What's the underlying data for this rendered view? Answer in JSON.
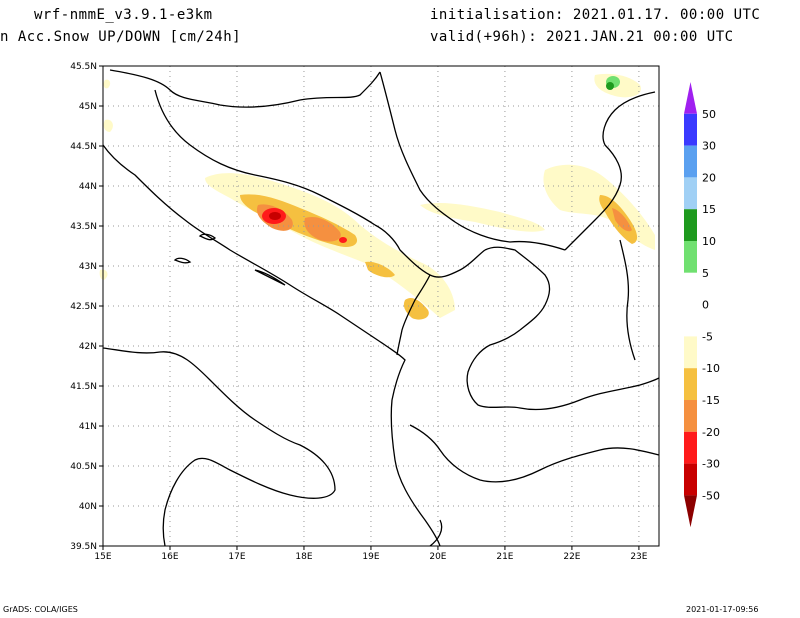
{
  "header": {
    "model": "wrf-nmmE_v3.9.1-e3km",
    "field": "n Acc.Snow UP/DOWN [cm/24h]",
    "init": "initialisation: 2021.01.17.  00:00 UTC",
    "valid": "valid(+96h): 2021.JAN.21 00:00 UTC"
  },
  "footer": {
    "credit": "GrADS: COLA/IGES",
    "timestamp": "2021-01-17-09:56"
  },
  "map": {
    "lat_labels": [
      "45.5N",
      "45N",
      "44.5N",
      "44N",
      "43.5N",
      "43N",
      "42.5N",
      "42N",
      "41.5N",
      "41N",
      "40.5N",
      "40N",
      "39.5N"
    ],
    "lon_labels": [
      "15E",
      "16E",
      "17E",
      "18E",
      "19E",
      "20E",
      "21E",
      "22E",
      "23E"
    ],
    "lon_range": [
      15,
      23.3
    ],
    "lat_range": [
      39.5,
      45.5
    ]
  },
  "colorbar": {
    "labels": [
      "50",
      "30",
      "20",
      "15",
      "10",
      "5",
      "0",
      "-5",
      "-10",
      "-15",
      "-20",
      "-30",
      "-50"
    ],
    "colors": {
      "c50": "#a020f0",
      "c30": "#3a3aff",
      "c20": "#5aa0f0",
      "c15": "#a0d0f5",
      "c10": "#1e9a1e",
      "c5": "#70e070",
      "zero": "#ffffff",
      "m5": "#fffac8",
      "m10": "#f5c040",
      "m15": "#f59040",
      "m20": "#ff1a1a",
      "m30": "#c80000",
      "m50": "#8c0000"
    }
  }
}
